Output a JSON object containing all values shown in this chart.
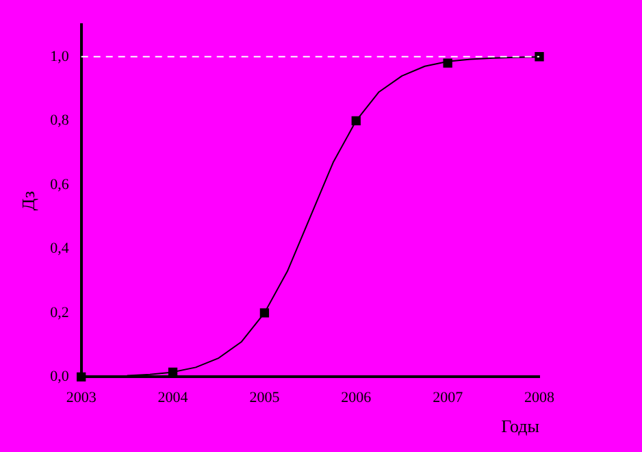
{
  "chart_data": {
    "type": "scatter",
    "xlabel": "Годы",
    "ylabel": "Дз",
    "xlim": [
      2003,
      2008
    ],
    "xticks": [
      2003,
      2004,
      2005,
      2006,
      2007,
      2008
    ],
    "ylim": [
      0,
      1.1
    ],
    "yticks": [
      {
        "value": 0,
        "label": "0,0"
      },
      {
        "value": 0.2,
        "label": "0,2"
      },
      {
        "value": 0.4,
        "label": "0,4"
      },
      {
        "value": 0.6,
        "label": "0,6"
      },
      {
        "value": 0.8,
        "label": "0,8"
      },
      {
        "value": 1,
        "label": "1,0"
      }
    ],
    "grid": false,
    "legend": false,
    "marker": "square",
    "ref_lines": [
      {
        "axis": "y",
        "value": 1,
        "color": "#ffffff",
        "line_style": "dashed"
      }
    ],
    "series": [
      {
        "type": "scatter",
        "color": "#000000",
        "x": [
          2003,
          2004,
          2005,
          2006,
          2007,
          2008
        ],
        "values": [
          0,
          0.015,
          0.2,
          0.8,
          0.98,
          1
        ]
      },
      {
        "type": "line",
        "color": "#000000",
        "marker": "none",
        "line_style": "solid",
        "x": [
          2003.5,
          2003.75,
          2004,
          2004.25,
          2004.5,
          2004.75,
          2005,
          2005.25,
          2005.5,
          2005.75,
          2006,
          2006.25,
          2006.5,
          2006.75,
          2007,
          2007.25,
          2007.5,
          2007.75,
          2008
        ],
        "values": [
          0.004,
          0.008,
          0.015,
          0.03,
          0.059,
          0.11,
          0.2,
          0.33,
          0.5,
          0.67,
          0.8,
          0.89,
          0.94,
          0.97,
          0.985,
          0.992,
          0.996,
          0.998,
          0.999
        ]
      }
    ]
  }
}
